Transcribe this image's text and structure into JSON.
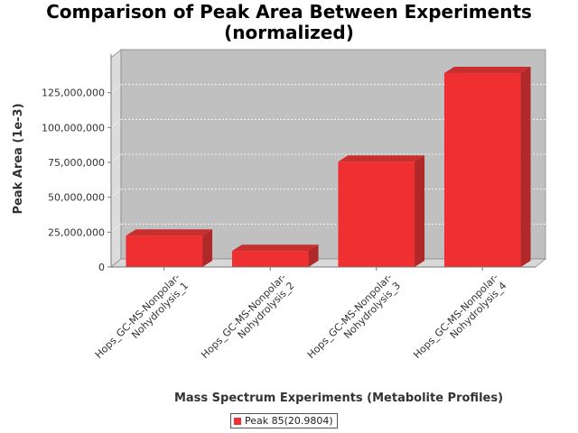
{
  "chart_data": {
    "type": "bar",
    "title_lines": [
      "Comparison of Peak Area Between Experiments",
      "(normalized)"
    ],
    "xlabel": "Mass Spectrum Experiments (Metabolite Profiles)",
    "ylabel": "Peak Area (1e-3)",
    "categories": [
      "Hops_GC-MS-Nonpolar-Nohydrolysis_1",
      "Hops_GC-MS-Nonpolar-Nohydrolysis_2",
      "Hops_GC-MS-Nonpolar-Nohydrolysis_3",
      "Hops_GC-MS-Nonpolar-Nohydrolysis_4"
    ],
    "category_label_lines": [
      [
        "Hops_GC-MS-Nonpolar-",
        "Nohydrolysis_1"
      ],
      [
        "Hops_GC-MS-Nonpolar-",
        "Nohydrolysis_2"
      ],
      [
        "Hops_GC-MS-Nonpolar-",
        "Nohydrolysis_3"
      ],
      [
        "Hops_GC-MS-Nonpolar-",
        "Nohydrolysis_4"
      ]
    ],
    "series": [
      {
        "name": "Peak 85(20.9804)",
        "color": "#f03030",
        "values": [
          22500000,
          11500000,
          75500000,
          139000000
        ]
      }
    ],
    "ylim": [
      0,
      150000000
    ],
    "yticks": [
      0,
      25000000,
      50000000,
      75000000,
      100000000,
      125000000
    ],
    "ytick_labels": [
      "0",
      "25,000,000",
      "50,000,000",
      "75,000,000",
      "100,000,000",
      "125,000,000"
    ],
    "grid": true,
    "legend": "bottom-center",
    "style": "3d-bar",
    "colors": {
      "plot_background": "#c0c0c0",
      "side_wall": "#dcdcdc",
      "bar_front": "#f03030",
      "bar_top": "#c83030",
      "bar_side": "#b02828"
    }
  }
}
